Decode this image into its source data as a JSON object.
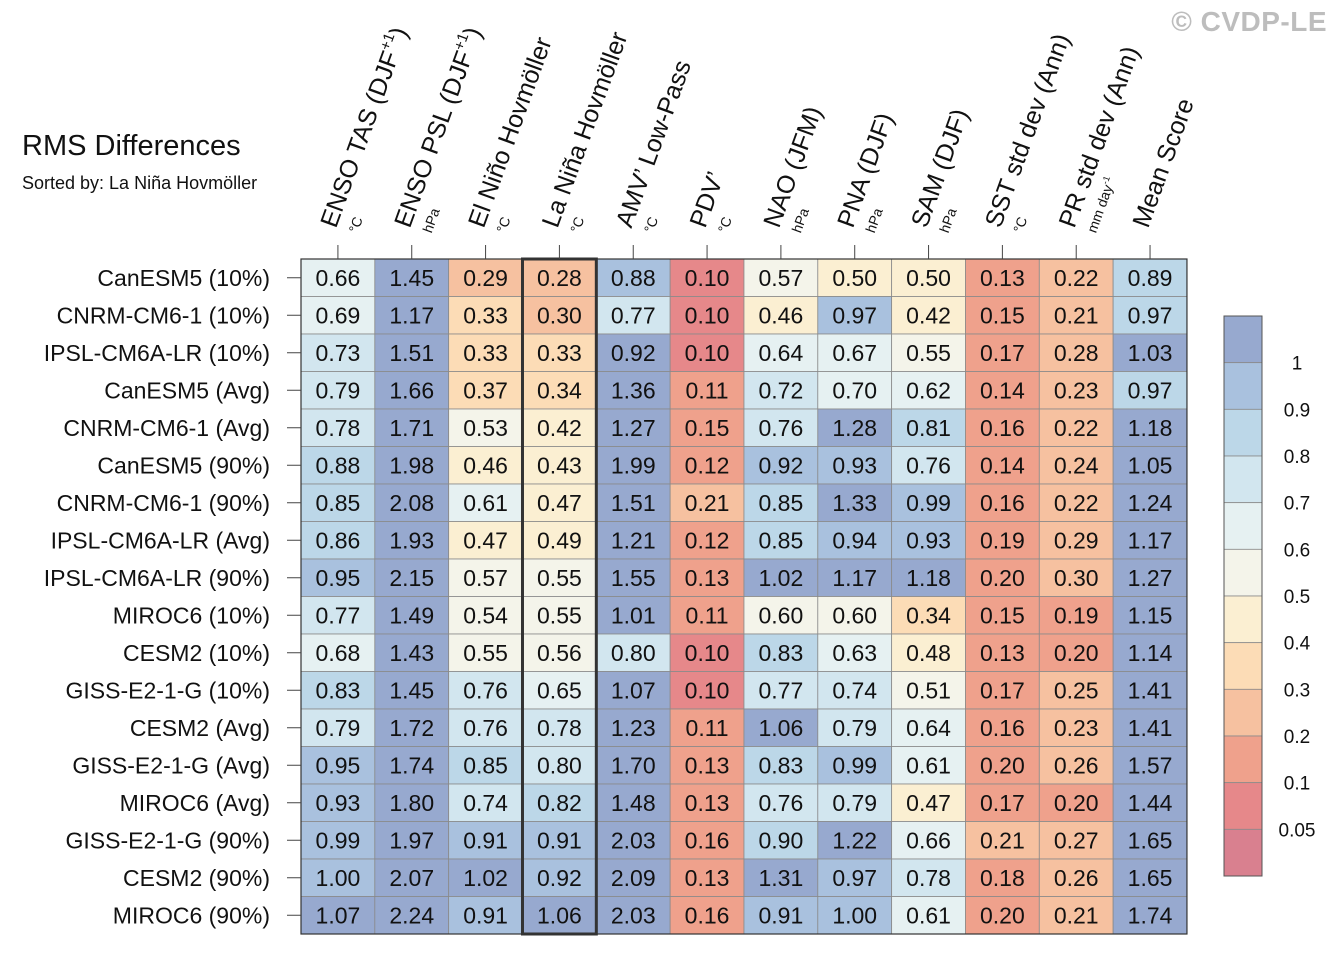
{
  "watermark": "© CVDP-LE",
  "chart_data": {
    "type": "heatmap",
    "title": "RMS Differences",
    "subtitle": "Sorted by: La Niña Hovmöller",
    "highlighted_column": "La Niña Hovmöller",
    "columns": [
      {
        "name": "ENSO TAS (DJF",
        "sup": "+1",
        "close": ")",
        "unit": "°C"
      },
      {
        "name": "ENSO PSL (DJF",
        "sup": "+1",
        "close": ")",
        "unit": "hPa"
      },
      {
        "name": "El Niño Hovmöller",
        "sup": "",
        "close": "",
        "unit": "°C"
      },
      {
        "name": "La Niña Hovmöller",
        "sup": "",
        "close": "",
        "unit": "°C"
      },
      {
        "name": "AMV’ Low-Pass",
        "sup": "",
        "close": "",
        "unit": "°C"
      },
      {
        "name": "PDV’",
        "sup": "",
        "close": "",
        "unit": "°C"
      },
      {
        "name": "NAO (JFM)",
        "sup": "",
        "close": "",
        "unit": "hPa"
      },
      {
        "name": "PNA (DJF)",
        "sup": "",
        "close": "",
        "unit": "hPa"
      },
      {
        "name": "SAM (DJF)",
        "sup": "",
        "close": "",
        "unit": "hPa"
      },
      {
        "name": "SST std dev (Ann)",
        "sup": "",
        "close": "",
        "unit": "°C"
      },
      {
        "name": "PR std dev (Ann)",
        "sup": "",
        "close": "",
        "unit": "mm day",
        "unit_sup": "-1"
      },
      {
        "name": "Mean Score",
        "sup": "",
        "close": "",
        "unit": ""
      }
    ],
    "rows": [
      "CanESM5 (10%)",
      "CNRM-CM6-1 (10%)",
      "IPSL-CM6A-LR (10%)",
      "CanESM5 (Avg)",
      "CNRM-CM6-1 (Avg)",
      "CanESM5 (90%)",
      "CNRM-CM6-1 (90%)",
      "IPSL-CM6A-LR (Avg)",
      "IPSL-CM6A-LR (90%)",
      "MIROC6 (10%)",
      "CESM2 (10%)",
      "GISS-E2-1-G (10%)",
      "CESM2 (Avg)",
      "GISS-E2-1-G (Avg)",
      "MIROC6 (Avg)",
      "GISS-E2-1-G (90%)",
      "CESM2 (90%)",
      "MIROC6 (90%)"
    ],
    "values": [
      [
        0.66,
        1.45,
        0.29,
        0.28,
        0.88,
        0.1,
        0.57,
        0.5,
        0.5,
        0.13,
        0.22,
        0.89
      ],
      [
        0.69,
        1.17,
        0.33,
        0.3,
        0.77,
        0.1,
        0.46,
        0.97,
        0.42,
        0.15,
        0.21,
        0.97
      ],
      [
        0.73,
        1.51,
        0.33,
        0.33,
        0.92,
        0.1,
        0.64,
        0.67,
        0.55,
        0.17,
        0.28,
        1.03
      ],
      [
        0.79,
        1.66,
        0.37,
        0.34,
        1.36,
        0.11,
        0.72,
        0.7,
        0.62,
        0.14,
        0.23,
        0.97
      ],
      [
        0.78,
        1.71,
        0.53,
        0.42,
        1.27,
        0.15,
        0.76,
        1.28,
        0.81,
        0.16,
        0.22,
        1.18
      ],
      [
        0.88,
        1.98,
        0.46,
        0.43,
        1.99,
        0.12,
        0.92,
        0.93,
        0.76,
        0.14,
        0.24,
        1.05
      ],
      [
        0.85,
        2.08,
        0.61,
        0.47,
        1.51,
        0.21,
        0.85,
        1.33,
        0.99,
        0.16,
        0.22,
        1.24
      ],
      [
        0.86,
        1.93,
        0.47,
        0.49,
        1.21,
        0.12,
        0.85,
        0.94,
        0.93,
        0.19,
        0.29,
        1.17
      ],
      [
        0.95,
        2.15,
        0.57,
        0.55,
        1.55,
        0.13,
        1.02,
        1.17,
        1.18,
        0.2,
        0.3,
        1.27
      ],
      [
        0.77,
        1.49,
        0.54,
        0.55,
        1.01,
        0.11,
        0.6,
        0.6,
        0.34,
        0.15,
        0.19,
        1.15
      ],
      [
        0.68,
        1.43,
        0.55,
        0.56,
        0.8,
        0.1,
        0.83,
        0.63,
        0.48,
        0.13,
        0.2,
        1.14
      ],
      [
        0.83,
        1.45,
        0.76,
        0.65,
        1.07,
        0.1,
        0.77,
        0.74,
        0.51,
        0.17,
        0.25,
        1.41
      ],
      [
        0.79,
        1.72,
        0.76,
        0.78,
        1.23,
        0.11,
        1.06,
        0.79,
        0.64,
        0.16,
        0.23,
        1.41
      ],
      [
        0.95,
        1.74,
        0.85,
        0.8,
        1.7,
        0.13,
        0.83,
        0.99,
        0.61,
        0.2,
        0.26,
        1.57
      ],
      [
        0.93,
        1.8,
        0.74,
        0.82,
        1.48,
        0.13,
        0.76,
        0.79,
        0.47,
        0.17,
        0.2,
        1.44
      ],
      [
        0.99,
        1.97,
        0.91,
        0.91,
        2.03,
        0.16,
        0.9,
        1.22,
        0.66,
        0.21,
        0.27,
        1.65
      ],
      [
        1.0,
        2.07,
        1.02,
        0.92,
        2.09,
        0.13,
        1.31,
        0.97,
        0.78,
        0.18,
        0.26,
        1.65
      ],
      [
        1.07,
        2.24,
        0.91,
        1.06,
        2.03,
        0.16,
        0.91,
        1.0,
        0.61,
        0.2,
        0.21,
        1.74
      ]
    ],
    "colorbar": {
      "ticks": [
        "1",
        "0.9",
        "0.8",
        "0.7",
        "0.6",
        "0.5",
        "0.4",
        "0.3",
        "0.2",
        "0.1",
        "0.05"
      ],
      "colors": [
        "#97a9cf",
        "#a9c1de",
        "#bcd7e8",
        "#d2e6ef",
        "#e6f1f2",
        "#f4f4ea",
        "#fbefd2",
        "#fcdcb6",
        "#f6c1a0",
        "#efa18c",
        "#e6888a",
        "#d9808f"
      ]
    }
  }
}
